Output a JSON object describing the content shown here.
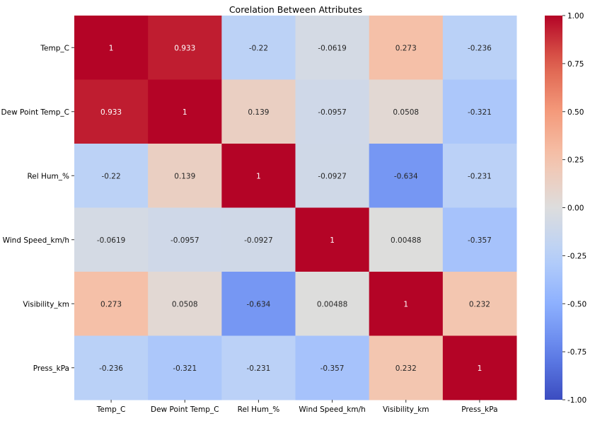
{
  "chart_data": {
    "type": "heatmap",
    "title": "Corelation Between Attributes",
    "xlabel": "",
    "ylabel": "",
    "x_categories": [
      "Temp_C",
      "Dew Point Temp_C",
      "Rel Hum_%",
      "Wind Speed_km/h",
      "Visibility_km",
      "Press_kPa"
    ],
    "y_categories": [
      "Temp_C",
      "Dew Point Temp_C",
      "Rel Hum_%",
      "Wind Speed_km/h",
      "Visibility_km",
      "Press_kPa"
    ],
    "values": [
      [
        1,
        0.933,
        -0.22,
        -0.0619,
        0.273,
        -0.236
      ],
      [
        0.933,
        1,
        0.139,
        -0.0957,
        0.0508,
        -0.321
      ],
      [
        -0.22,
        0.139,
        1,
        -0.0927,
        -0.634,
        -0.231
      ],
      [
        -0.0619,
        -0.0957,
        -0.0927,
        1,
        0.00488,
        -0.357
      ],
      [
        0.273,
        0.0508,
        -0.634,
        0.00488,
        1,
        0.232
      ],
      [
        -0.236,
        -0.321,
        -0.231,
        -0.357,
        0.232,
        1
      ]
    ],
    "value_labels": [
      [
        "1",
        "0.933",
        "-0.22",
        "-0.0619",
        "0.273",
        "-0.236"
      ],
      [
        "0.933",
        "1",
        "0.139",
        "-0.0957",
        "0.0508",
        "-0.321"
      ],
      [
        "-0.22",
        "0.139",
        "1",
        "-0.0927",
        "-0.634",
        "-0.231"
      ],
      [
        "-0.0619",
        "-0.0957",
        "-0.0927",
        "1",
        "0.00488",
        "-0.357"
      ],
      [
        "0.273",
        "0.0508",
        "-0.634",
        "0.00488",
        "1",
        "0.232"
      ],
      [
        "-0.236",
        "-0.321",
        "-0.231",
        "-0.357",
        "0.232",
        "1"
      ]
    ],
    "colormap": "coolwarm",
    "color_range": [
      -1.0,
      1.0
    ],
    "colorbar_ticks": [
      "1.00",
      "0.75",
      "0.50",
      "0.25",
      "0.00",
      "-0.25",
      "-0.50",
      "-0.75",
      "-1.00"
    ],
    "colorbar_tick_values": [
      1.0,
      0.75,
      0.5,
      0.25,
      0.0,
      -0.25,
      -0.5,
      -0.75,
      -1.0
    ],
    "grid": false,
    "legend": "colorbar-right"
  }
}
